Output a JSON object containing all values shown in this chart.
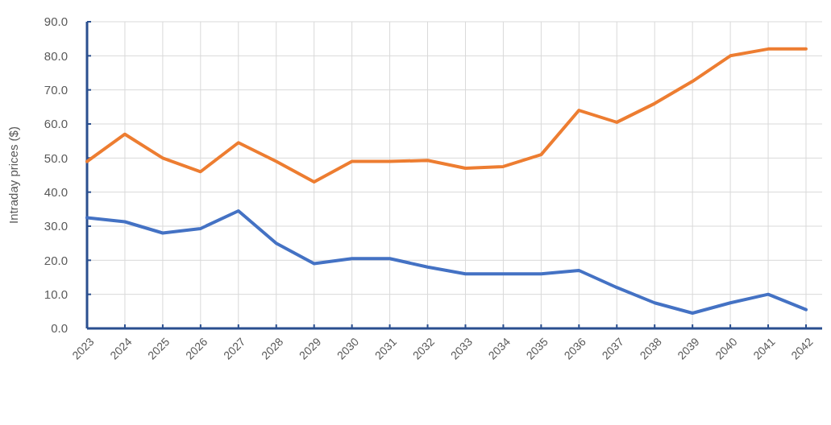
{
  "chart_data": {
    "type": "line",
    "ylabel": "Intraday prices ($)",
    "categories": [
      "2023",
      "2024",
      "2025",
      "2026",
      "2027",
      "2028",
      "2029",
      "2030",
      "2031",
      "2032",
      "2033",
      "2034",
      "2035",
      "2036",
      "2037",
      "2038",
      "2039",
      "2040",
      "2041",
      "2042"
    ],
    "series": [
      {
        "color": "#4472c4",
        "values": [
          32.5,
          31.3,
          28,
          29.3,
          34.5,
          25,
          19,
          20.5,
          20.5,
          18,
          16,
          16,
          16,
          17,
          12,
          7.5,
          4.5,
          7.5,
          10,
          5.5
        ]
      },
      {
        "color": "#ed7d31",
        "values": [
          49,
          57,
          50,
          46,
          54.5,
          49,
          43,
          49,
          49,
          49.3,
          47,
          47.5,
          51,
          64,
          60.5,
          66,
          72.5,
          80,
          82,
          82
        ]
      }
    ],
    "ylim": [
      0,
      90
    ],
    "yticks": [
      {
        "value": 0,
        "label": "0.0"
      },
      {
        "value": 10,
        "label": "10.0"
      },
      {
        "value": 20,
        "label": "20.0"
      },
      {
        "value": 30,
        "label": "30.0"
      },
      {
        "value": 40,
        "label": "40.0"
      },
      {
        "value": 50,
        "label": "50.0"
      },
      {
        "value": 60,
        "label": "60.0"
      },
      {
        "value": 70,
        "label": "70.0"
      },
      {
        "value": 80,
        "label": "80.0"
      },
      {
        "value": 90,
        "label": "90.0"
      }
    ],
    "grid": true,
    "marker": "none",
    "line_style": "solid"
  }
}
